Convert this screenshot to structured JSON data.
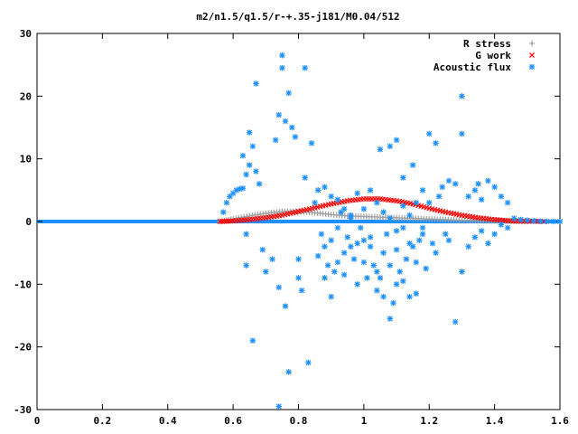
{
  "chart_data": {
    "type": "scatter",
    "title": "m2/n1.5/q1.5/r-+.35-j181/M0.04/512",
    "xlabel": "",
    "ylabel": "",
    "xlim": [
      0,
      1.6
    ],
    "ylim": [
      -30,
      30
    ],
    "grid": false,
    "legend_position": "top-right",
    "x_ticks": [
      "0",
      "0.2",
      "0.4",
      "0.6",
      "0.8",
      "1",
      "1.2",
      "1.4",
      "1.6"
    ],
    "y_ticks": [
      "30",
      "20",
      "10",
      "0",
      "-10",
      "-20",
      "-30"
    ],
    "series": [
      {
        "name": "R stress",
        "marker": "+",
        "color": "#a0a0a0",
        "description_points": [
          [
            0.56,
            0.0
          ],
          [
            0.6,
            0.4
          ],
          [
            0.65,
            0.9
          ],
          [
            0.7,
            1.3
          ],
          [
            0.75,
            1.6
          ],
          [
            0.8,
            1.6
          ],
          [
            0.85,
            1.4
          ],
          [
            0.9,
            1.1
          ],
          [
            0.95,
            0.9
          ],
          [
            1.0,
            0.8
          ],
          [
            1.05,
            0.7
          ],
          [
            1.1,
            0.6
          ],
          [
            1.15,
            0.5
          ],
          [
            1.2,
            0.4
          ],
          [
            1.25,
            0.3
          ],
          [
            1.3,
            0.2
          ],
          [
            1.35,
            0.15
          ],
          [
            1.4,
            0.1
          ],
          [
            1.45,
            0.05
          ],
          [
            1.5,
            0.0
          ]
        ]
      },
      {
        "name": "G work",
        "marker": "x",
        "color": "#ff0000",
        "description_points": [
          [
            0.56,
            0.0
          ],
          [
            0.6,
            0.1
          ],
          [
            0.65,
            0.3
          ],
          [
            0.7,
            0.6
          ],
          [
            0.75,
            1.0
          ],
          [
            0.8,
            1.6
          ],
          [
            0.85,
            2.2
          ],
          [
            0.9,
            2.8
          ],
          [
            0.95,
            3.3
          ],
          [
            1.0,
            3.6
          ],
          [
            1.05,
            3.6
          ],
          [
            1.1,
            3.3
          ],
          [
            1.15,
            2.8
          ],
          [
            1.2,
            2.1
          ],
          [
            1.25,
            1.5
          ],
          [
            1.3,
            1.0
          ],
          [
            1.35,
            0.6
          ],
          [
            1.4,
            0.3
          ],
          [
            1.45,
            0.1
          ],
          [
            1.5,
            0.05
          ],
          [
            1.55,
            0.0
          ]
        ]
      },
      {
        "name": "Acoustic flux",
        "marker": "*",
        "color": "#1e90ff",
        "points": [
          [
            0.57,
            1.5
          ],
          [
            0.58,
            3.0
          ],
          [
            0.59,
            4.0
          ],
          [
            0.6,
            4.5
          ],
          [
            0.61,
            5.0
          ],
          [
            0.62,
            5.2
          ],
          [
            0.63,
            5.3
          ],
          [
            0.63,
            10.5
          ],
          [
            0.64,
            7.5
          ],
          [
            0.65,
            14.2
          ],
          [
            0.65,
            9.0
          ],
          [
            0.66,
            12.0
          ],
          [
            0.67,
            22.0
          ],
          [
            0.67,
            8.0
          ],
          [
            0.68,
            6.0
          ],
          [
            0.69,
            -4.5
          ],
          [
            0.7,
            -8.0
          ],
          [
            0.66,
            -19.0
          ],
          [
            0.64,
            -2.0
          ],
          [
            0.64,
            -7.0
          ],
          [
            0.72,
            -6.0
          ],
          [
            0.73,
            13.0
          ],
          [
            0.74,
            17.0
          ],
          [
            0.74,
            -10.5
          ],
          [
            0.75,
            26.5
          ],
          [
            0.75,
            24.5
          ],
          [
            0.76,
            16.0
          ],
          [
            0.77,
            20.5
          ],
          [
            0.77,
            -24.0
          ],
          [
            0.76,
            -13.5
          ],
          [
            0.78,
            15.0
          ],
          [
            0.79,
            13.5
          ],
          [
            0.8,
            -6.0
          ],
          [
            0.8,
            -9.0
          ],
          [
            0.81,
            -11.0
          ],
          [
            0.82,
            24.5
          ],
          [
            0.82,
            7.0
          ],
          [
            0.83,
            -22.5
          ],
          [
            0.84,
            12.5
          ],
          [
            0.85,
            3.0
          ],
          [
            0.74,
            -29.5
          ],
          [
            0.86,
            5.0
          ],
          [
            0.87,
            -2.0
          ],
          [
            0.88,
            -4.0
          ],
          [
            0.89,
            -7.0
          ],
          [
            0.9,
            -3.0
          ],
          [
            0.91,
            -8.0
          ],
          [
            0.92,
            -1.0
          ],
          [
            0.93,
            1.5
          ],
          [
            0.94,
            -5.0
          ],
          [
            0.95,
            -2.5
          ],
          [
            0.96,
            0.5
          ],
          [
            0.97,
            -6.0
          ],
          [
            0.98,
            -3.5
          ],
          [
            0.99,
            -1.0
          ],
          [
            1.0,
            -3.0
          ],
          [
            1.01,
            -9.0
          ],
          [
            1.02,
            -4.0
          ],
          [
            1.03,
            -7.0
          ],
          [
            1.04,
            -11.0
          ],
          [
            1.05,
            -9.0
          ],
          [
            1.06,
            -5.0
          ],
          [
            1.07,
            -2.0
          ],
          [
            1.08,
            -15.5
          ],
          [
            1.09,
            -13.0
          ],
          [
            1.1,
            -10.0
          ],
          [
            1.11,
            -8.0
          ],
          [
            1.12,
            -9.5
          ],
          [
            1.13,
            -6.0
          ],
          [
            1.14,
            -12.0
          ],
          [
            1.15,
            -4.0
          ],
          [
            1.16,
            -11.5
          ],
          [
            1.17,
            -3.0
          ],
          [
            1.18,
            -2.0
          ],
          [
            1.19,
            -7.5
          ],
          [
            1.2,
            3.0
          ],
          [
            1.21,
            -3.5
          ],
          [
            1.22,
            -5.0
          ],
          [
            1.23,
            4.0
          ],
          [
            1.24,
            5.5
          ],
          [
            1.25,
            -2.0
          ],
          [
            1.05,
            11.5
          ],
          [
            1.08,
            12.0
          ],
          [
            1.1,
            13.0
          ],
          [
            1.12,
            7.0
          ],
          [
            1.15,
            9.0
          ],
          [
            1.18,
            5.0
          ],
          [
            1.2,
            14.0
          ],
          [
            1.22,
            12.5
          ],
          [
            1.26,
            6.5
          ],
          [
            1.28,
            6.0
          ],
          [
            1.3,
            20.0
          ],
          [
            1.3,
            14.0
          ],
          [
            1.32,
            4.0
          ],
          [
            1.34,
            5.0
          ],
          [
            1.35,
            6.0
          ],
          [
            1.36,
            3.5
          ],
          [
            1.38,
            6.5
          ],
          [
            1.4,
            5.5
          ],
          [
            1.42,
            4.0
          ],
          [
            1.44,
            3.0
          ],
          [
            1.26,
            -3.0
          ],
          [
            1.28,
            -16.0
          ],
          [
            1.3,
            -8.0
          ],
          [
            1.32,
            -4.0
          ],
          [
            1.34,
            -2.5
          ],
          [
            1.36,
            -1.5
          ],
          [
            1.38,
            -3.5
          ],
          [
            1.4,
            -2.0
          ],
          [
            1.42,
            -0.5
          ],
          [
            1.44,
            -1.0
          ],
          [
            1.46,
            0.5
          ],
          [
            1.48,
            0.3
          ],
          [
            1.5,
            0.2
          ],
          [
            1.52,
            0.1
          ],
          [
            1.54,
            0.05
          ],
          [
            1.56,
            0.02
          ],
          [
            1.58,
            0.01
          ],
          [
            1.6,
            0.0
          ],
          [
            0.88,
            5.5
          ],
          [
            0.9,
            4.0
          ],
          [
            0.92,
            3.5
          ],
          [
            0.94,
            2.0
          ],
          [
            0.96,
            1.0
          ],
          [
            0.98,
            4.5
          ],
          [
            1.0,
            2.0
          ],
          [
            1.02,
            5.0
          ],
          [
            1.04,
            3.0
          ],
          [
            1.06,
            1.5
          ],
          [
            1.08,
            0.5
          ],
          [
            1.1,
            -1.5
          ],
          [
            1.12,
            2.5
          ],
          [
            1.14,
            1.0
          ],
          [
            1.16,
            3.0
          ],
          [
            1.18,
            -1.0
          ],
          [
            0.86,
            -5.5
          ],
          [
            0.88,
            -9.0
          ],
          [
            0.9,
            -12.0
          ],
          [
            0.92,
            -6.5
          ],
          [
            0.94,
            -8.5
          ],
          [
            0.96,
            -4.0
          ],
          [
            0.98,
            -10.0
          ],
          [
            1.0,
            -6.5
          ],
          [
            1.02,
            -2.5
          ],
          [
            1.04,
            -8.0
          ],
          [
            1.06,
            -12.0
          ],
          [
            1.08,
            -7.0
          ],
          [
            1.1,
            -4.5
          ],
          [
            1.12,
            -1.0
          ],
          [
            1.14,
            -3.5
          ],
          [
            1.16,
            -6.5
          ]
        ]
      }
    ]
  }
}
